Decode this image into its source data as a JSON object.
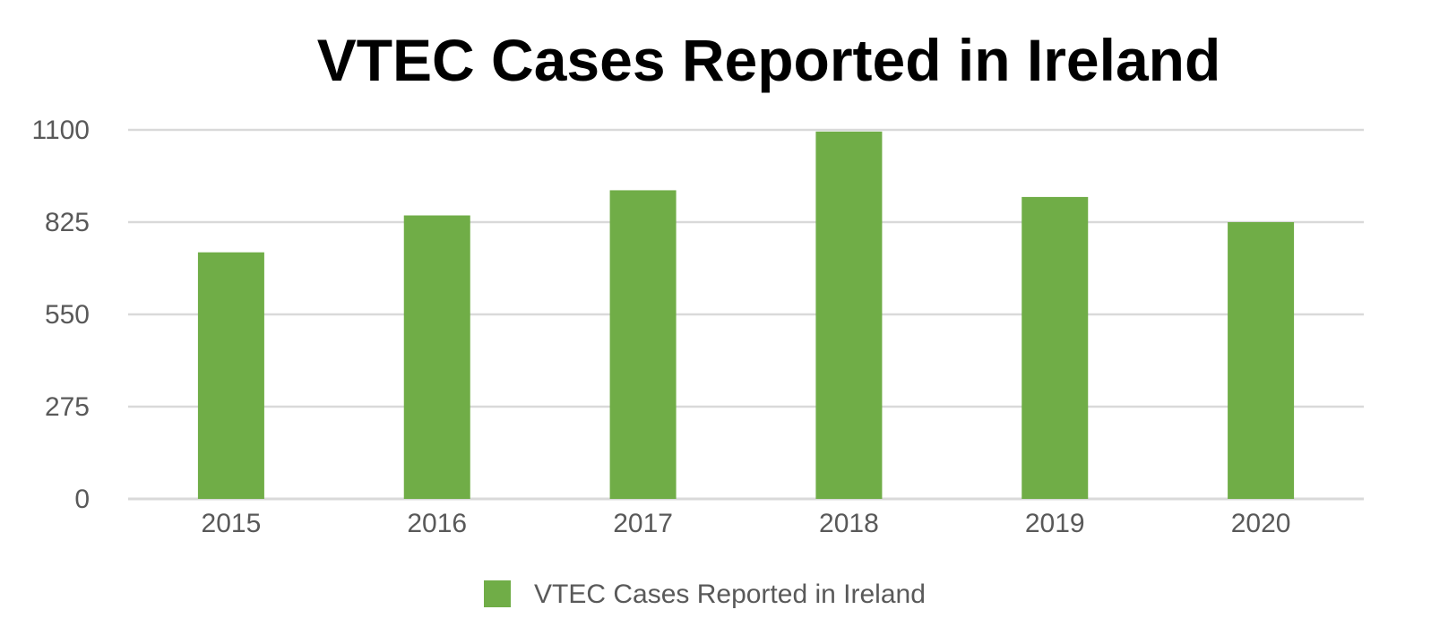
{
  "chart_data": {
    "type": "bar",
    "title": "VTEC Cases Reported in Ireland",
    "categories": [
      "2015",
      "2016",
      "2017",
      "2018",
      "2019",
      "2020"
    ],
    "series": [
      {
        "name": "VTEC Cases Reported in Ireland",
        "values": [
          735,
          845,
          920,
          1095,
          900,
          825
        ],
        "color": "#70AD47"
      }
    ],
    "yticks": [
      "0",
      "275",
      "550",
      "825",
      "1100"
    ],
    "ylim": [
      0,
      1100
    ],
    "xlabel": "",
    "ylabel": "",
    "grid": true,
    "legend_position": "bottom-center",
    "gridline_color": "#D9D9D9",
    "axis_color": "#D9D9D9"
  }
}
